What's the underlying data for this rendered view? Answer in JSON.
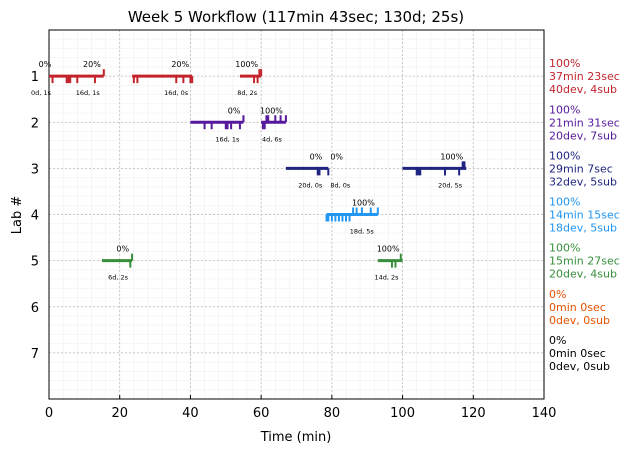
{
  "chart_data": {
    "type": "timeline",
    "title": "Week 5 Workflow (117min 43sec; 130d; 25s)",
    "xlabel": "Time (min)",
    "ylabel": "Lab #",
    "xlim": [
      0,
      140
    ],
    "ylim": [
      8,
      0
    ],
    "xticks": [
      "0",
      "20",
      "40",
      "60",
      "80",
      "100",
      "120",
      "140"
    ],
    "yticks": [
      "1",
      "2",
      "3",
      "4",
      "5",
      "6",
      "7"
    ],
    "grid": true,
    "labs": [
      {
        "lab": 1,
        "color": "#c3242c",
        "summary": [
          "100%",
          "37min 23sec",
          "40dev, 4sub"
        ],
        "segments": [
          {
            "start": 0,
            "end": 15.5,
            "start_pct": "0%",
            "end_pct": "20%",
            "start_note": "0d, 1s",
            "end_note": "16d, 1s",
            "down": [
              1,
              5,
              5.5,
              6,
              8,
              13
            ],
            "up": [
              15.5
            ]
          },
          {
            "start": 23.5,
            "end": 40.5,
            "end_pct": "20%",
            "end_note": "16d, 0s",
            "down": [
              24,
              25,
              36,
              38,
              40,
              40.5
            ],
            "up": []
          },
          {
            "start": 54,
            "end": 60,
            "end_pct": "100%",
            "end_note": "8d, 2s",
            "down": [
              58,
              59
            ],
            "up": [
              59.5,
              60
            ]
          }
        ]
      },
      {
        "lab": 2,
        "color": "#55189c",
        "summary": [
          "100%",
          "21min 31sec",
          "20dev, 7sub"
        ],
        "segments": [
          {
            "start": 40,
            "end": 55,
            "end_pct": "0%",
            "end_note": "16d, 1s",
            "down": [
              44,
              46,
              50,
              50.5,
              51.5,
              54
            ],
            "up": [
              55
            ]
          },
          {
            "start": 60,
            "end": 67,
            "end_pct": "100%",
            "end_note": "4d, 6s",
            "down": [
              60.5,
              61
            ],
            "up": [
              61.5,
              62,
              64,
              65.5,
              67
            ]
          }
        ]
      },
      {
        "lab": 3,
        "color": "#1f2580",
        "summary": [
          "100%",
          "29min 7sec",
          "32dev, 5sub"
        ],
        "segments": [
          {
            "start": 67,
            "end": 79,
            "end_pct": "0%",
            "end_note": "20d, 0s",
            "extra_pct": "0%",
            "extra_note": "8d, 0s",
            "down": [
              76,
              76.5,
              79
            ],
            "up": []
          },
          {
            "start": 100,
            "end": 118,
            "end_pct": "100%",
            "end_note": "20d, 5s",
            "down": [
              104,
              104.5,
              105,
              112,
              116
            ],
            "up": [
              117,
              117.5
            ]
          }
        ]
      },
      {
        "lab": 4,
        "color": "#2196f3",
        "summary": [
          "100%",
          "14min 15sec",
          "18dev, 5sub"
        ],
        "segments": [
          {
            "start": 78.5,
            "end": 93,
            "end_pct": "100%",
            "end_note": "18d, 5s",
            "down": [
              78.5,
              79,
              80,
              81,
              82,
              83,
              84,
              85
            ],
            "up": [
              86,
              87,
              88.5,
              91,
              93
            ]
          }
        ]
      },
      {
        "lab": 5,
        "color": "#388e3c",
        "summary": [
          "100%",
          "15min 27sec",
          "20dev, 4sub"
        ],
        "segments": [
          {
            "start": 15,
            "end": 23.5,
            "end_pct": "0%",
            "end_note": "6d, 2s",
            "down": [
              23
            ],
            "up": [
              23.5
            ]
          },
          {
            "start": 93,
            "end": 100,
            "end_pct": "100%",
            "end_note": "14d, 2s",
            "down": [
              97,
              98
            ],
            "up": [
              99.5
            ]
          }
        ]
      },
      {
        "lab": 6,
        "color": "#e65100",
        "summary": [
          "0%",
          "0min 0sec",
          "0dev, 0sub"
        ],
        "segments": []
      },
      {
        "lab": 7,
        "color": "#000000",
        "summary": [
          "0%",
          "0min 0sec",
          "0dev, 0sub"
        ],
        "segments": []
      }
    ]
  }
}
